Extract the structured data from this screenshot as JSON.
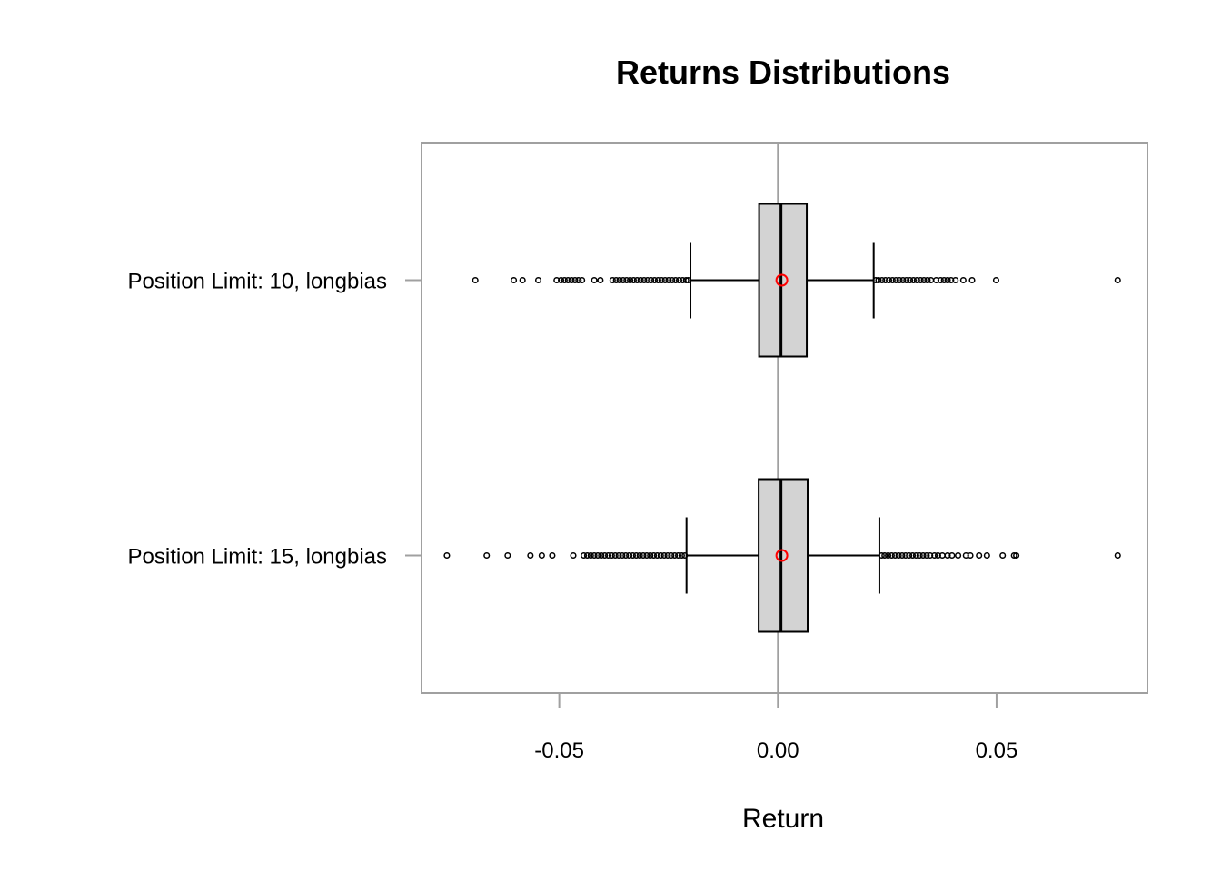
{
  "chart_data": {
    "type": "boxplot",
    "orientation": "horizontal",
    "title": "Returns Distributions",
    "xlabel": "Return",
    "ylabel": "",
    "xlim": [
      -0.0815,
      0.0845
    ],
    "x_ticks": [
      -0.05,
      0.0,
      0.05
    ],
    "x_tick_labels": [
      "-0.05",
      "0.00",
      "0.05"
    ],
    "reference_line_x": 0.0,
    "grid": false,
    "colors": {
      "box_fill": "#d3d3d3",
      "mean_marker": "#ff0000",
      "reference_line": "#a0a0a0",
      "frame": "#a0a0a0"
    },
    "categories": [
      "Position Limit: 10, longbias",
      "Position Limit: 15, longbias"
    ],
    "series": [
      {
        "category": "Position Limit: 10, longbias",
        "whisker_low": -0.02,
        "q1": -0.0043,
        "median": 0.0007,
        "q3": 0.0066,
        "whisker_high": 0.0219,
        "mean": 0.0009,
        "outliers": [
          -0.0692,
          -0.0604,
          -0.0584,
          -0.0548,
          -0.0506,
          -0.0496,
          -0.0488,
          -0.048,
          -0.0472,
          -0.0464,
          -0.0456,
          -0.0448,
          -0.042,
          -0.0406,
          -0.0378,
          -0.037,
          -0.0362,
          -0.0354,
          -0.0346,
          -0.0338,
          -0.033,
          -0.0322,
          -0.0314,
          -0.0306,
          -0.0298,
          -0.029,
          -0.0282,
          -0.0274,
          -0.0266,
          -0.0258,
          -0.025,
          -0.0242,
          -0.0234,
          -0.0226,
          -0.0218,
          -0.021,
          -0.0205,
          0.0224,
          0.023,
          0.0238,
          0.0246,
          0.0254,
          0.0262,
          0.027,
          0.0278,
          0.0286,
          0.0294,
          0.0302,
          0.031,
          0.0318,
          0.0326,
          0.0334,
          0.0342,
          0.035,
          0.0362,
          0.0372,
          0.038,
          0.0388,
          0.0396,
          0.0406,
          0.0424,
          0.0444,
          0.0499,
          0.0777
        ]
      },
      {
        "category": "Position Limit: 15, longbias",
        "whisker_low": -0.0209,
        "q1": -0.0044,
        "median": 0.0007,
        "q3": 0.0068,
        "whisker_high": 0.0232,
        "mean": 0.0009,
        "outliers": [
          -0.0757,
          -0.0666,
          -0.0618,
          -0.0566,
          -0.054,
          -0.0516,
          -0.0468,
          -0.0444,
          -0.0436,
          -0.0428,
          -0.042,
          -0.0412,
          -0.0404,
          -0.0396,
          -0.0388,
          -0.038,
          -0.0372,
          -0.0364,
          -0.0356,
          -0.0348,
          -0.034,
          -0.0332,
          -0.0324,
          -0.0316,
          -0.0308,
          -0.03,
          -0.0292,
          -0.0284,
          -0.0276,
          -0.0268,
          -0.026,
          -0.0252,
          -0.0244,
          -0.0236,
          -0.0228,
          -0.022,
          -0.0213,
          0.0237,
          0.0244,
          0.0252,
          0.026,
          0.0268,
          0.0276,
          0.0284,
          0.0292,
          0.03,
          0.0308,
          0.0316,
          0.0324,
          0.0332,
          0.034,
          0.0348,
          0.0358,
          0.0366,
          0.0376,
          0.0388,
          0.0398,
          0.0412,
          0.043,
          0.044,
          0.046,
          0.0478,
          0.0514,
          0.054,
          0.0545,
          0.0777
        ]
      }
    ]
  }
}
